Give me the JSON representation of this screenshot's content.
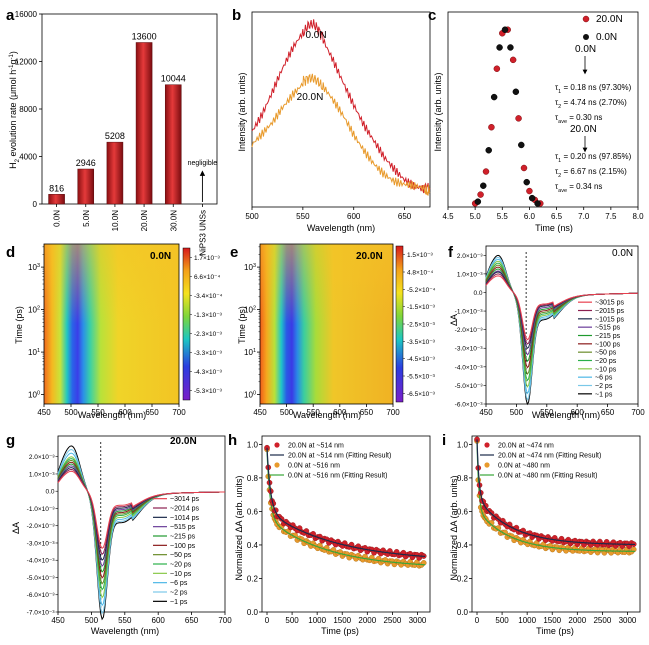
{
  "colors": {
    "red": "#d0202a",
    "orange": "#e89a2c",
    "dark": "#1b2a4a",
    "green": "#3aa63a",
    "black": "#000000"
  },
  "chart_data": [
    {
      "id": "a",
      "panel_label": "a",
      "type": "bar",
      "categories": [
        "0.0N",
        "5.0N",
        "10.0N",
        "20.0N",
        "30.0N",
        "NiPS3 UNSs"
      ],
      "values": [
        816,
        2946,
        5208,
        13600,
        10044,
        0
      ],
      "data_labels": [
        "816",
        "2946",
        "5208",
        "13600",
        "10044",
        ""
      ],
      "annotation": "negligible",
      "ylabel_parts": [
        "H",
        "2",
        "evolution rate (μmol h",
        "-1",
        "g",
        "-1",
        ")"
      ],
      "ylim": [
        0,
        16000
      ],
      "yticks": [
        "0",
        "4000",
        "8000",
        "12000",
        "16000"
      ],
      "ytick_values": [
        0,
        4000,
        8000,
        12000,
        16000
      ]
    },
    {
      "id": "b",
      "panel_label": "b",
      "type": "line",
      "xlabel": "Wavelength (nm)",
      "ylabel": "Intensity (arb. units)",
      "xlim": [
        500,
        675
      ],
      "ylim": [
        0,
        1.15
      ],
      "xticks": [
        "500",
        "550",
        "600",
        "650"
      ],
      "xtick_values": [
        500,
        550,
        600,
        650
      ],
      "series": [
        {
          "name": "0.0N",
          "color_key": "red",
          "x": [
            500,
            510,
            520,
            530,
            540,
            550,
            555,
            560,
            565,
            570,
            580,
            590,
            600,
            610,
            620,
            630,
            640,
            650,
            660,
            670,
            675
          ],
          "y": [
            0.46,
            0.55,
            0.67,
            0.8,
            0.92,
            1.02,
            1.07,
            1.08,
            1.05,
            1.0,
            0.88,
            0.74,
            0.6,
            0.47,
            0.37,
            0.28,
            0.22,
            0.17,
            0.14,
            0.12,
            0.11
          ]
        },
        {
          "name": "20.0N",
          "color_key": "orange",
          "x": [
            500,
            510,
            520,
            530,
            540,
            550,
            555,
            560,
            565,
            570,
            580,
            590,
            600,
            610,
            620,
            630,
            640,
            650,
            660,
            670,
            675
          ],
          "y": [
            0.35,
            0.42,
            0.5,
            0.6,
            0.68,
            0.74,
            0.76,
            0.76,
            0.74,
            0.7,
            0.61,
            0.52,
            0.42,
            0.34,
            0.27,
            0.21,
            0.16,
            0.13,
            0.11,
            0.09,
            0.09
          ]
        }
      ]
    },
    {
      "id": "c",
      "panel_label": "c",
      "type": "scatter",
      "xlabel": "Time (ns)",
      "ylabel": "Intensity (arb. units)",
      "xlim": [
        4.5,
        8.0
      ],
      "ylim": [
        0,
        1.1
      ],
      "xticks": [
        "4.5",
        "5.0",
        "5.5",
        "6.0",
        "6.5",
        "7.0",
        "7.5",
        "8.0"
      ],
      "xtick_values": [
        4.5,
        5.0,
        5.5,
        6.0,
        6.5,
        7.0,
        7.5,
        8.0
      ],
      "series": [
        {
          "name": "20.0N",
          "color_key": "red",
          "x": [
            5.0,
            5.1,
            5.2,
            5.3,
            5.4,
            5.5,
            5.6,
            5.7,
            5.8,
            5.9,
            6.0,
            6.1,
            6.2
          ],
          "y": [
            0.02,
            0.07,
            0.2,
            0.45,
            0.78,
            0.98,
            1.0,
            0.83,
            0.5,
            0.22,
            0.09,
            0.04,
            0.02
          ]
        },
        {
          "name": "0.0N",
          "color_key": "black",
          "x": [
            5.05,
            5.15,
            5.25,
            5.35,
            5.45,
            5.55,
            5.65,
            5.75,
            5.85,
            5.95,
            6.05,
            6.15
          ],
          "y": [
            0.03,
            0.12,
            0.32,
            0.62,
            0.9,
            1.0,
            0.9,
            0.65,
            0.35,
            0.14,
            0.05,
            0.02
          ]
        }
      ],
      "annotations": [
        {
          "title": "0.0N",
          "tau1": "= 0.18 ns (97.30%)",
          "tau2": "= 4.74 ns (2.70%)",
          "tauave": "= 0.30 ns"
        },
        {
          "title": "20.0N",
          "tau1": "= 0.20 ns (97.85%)",
          "tau2": "= 6.67 ns (2.15%)",
          "tauave": "= 0.34 ns"
        }
      ]
    },
    {
      "id": "d",
      "panel_label": "d",
      "type": "heatmap",
      "title": "0.0N",
      "xlabel": "Wavelength (nm)",
      "ylabel": "Time (ps)",
      "xlim": [
        450,
        700
      ],
      "xticks": [
        "450",
        "500",
        "550",
        "600",
        "650",
        "700"
      ],
      "xtick_values": [
        450,
        500,
        550,
        600,
        650,
        700
      ],
      "ytick_values": [
        1,
        10,
        100,
        1000
      ],
      "colorbar_ticks": [
        "1.7×10⁻³",
        "6.6×10⁻⁴",
        "-3.4×10⁻⁴",
        "-1.3×10⁻³",
        "-2.3×10⁻³",
        "-3.3×10⁻³",
        "-4.3×10⁻³",
        "-5.3×10⁻³"
      ]
    },
    {
      "id": "e",
      "panel_label": "e",
      "type": "heatmap",
      "title": "20.0N",
      "xlabel": "Wavelength (nm)",
      "ylabel": "Time (ps)",
      "xlim": [
        450,
        700
      ],
      "xticks": [
        "450",
        "500",
        "550",
        "600",
        "650",
        "700"
      ],
      "xtick_values": [
        450,
        500,
        550,
        600,
        650,
        700
      ],
      "ytick_values": [
        1,
        10,
        100,
        1000
      ],
      "colorbar_ticks": [
        "1.5×10⁻³",
        "4.8×10⁻⁴",
        "-5.2×10⁻⁴",
        "-1.5×10⁻³",
        "-2.5×10⁻³",
        "-3.5×10⁻³",
        "-4.5×10⁻³",
        "-5.5×10⁻³",
        "-6.5×10⁻³"
      ]
    },
    {
      "id": "f",
      "panel_label": "f",
      "type": "line",
      "title": "0.0N",
      "xlabel": "Wavelength (nm)",
      "ylabel": "ΔA",
      "xlim": [
        450,
        700
      ],
      "ylim": [
        -0.006,
        0.0025
      ],
      "xticks": [
        "450",
        "500",
        "550",
        "600",
        "650",
        "700"
      ],
      "xtick_values": [
        450,
        500,
        550,
        600,
        650,
        700
      ],
      "ytick_values": [
        0.002,
        0.001,
        0,
        -0.001,
        -0.002,
        -0.003,
        -0.004,
        -0.005,
        -0.006
      ],
      "yticks": [
        "2.0×10⁻³",
        "1.0×10⁻³",
        "0.0",
        "-1.0×10⁻³",
        "-2.0×10⁻³",
        "-3.0×10⁻³",
        "-4.0×10⁻³",
        "-5.0×10⁻³",
        "-6.0×10⁻³"
      ],
      "dashed_x": 516,
      "legend": [
        "~3015 ps",
        "~2015 ps",
        "~1015 ps",
        "~515 ps",
        "~215 ps",
        "~100 ps",
        "~50 ps",
        "~20 ps",
        "~10 ps",
        "~6 ps",
        "~2 ps",
        "~1 ps"
      ],
      "legend_colors": [
        "#e8404e",
        "#8b2050",
        "#1b2a4a",
        "#6a3d9a",
        "#1f9a2e",
        "#8b1a1a",
        "#6a8c2a",
        "#2ab04a",
        "#88c848",
        "#4db8e6",
        "#7ac8e8",
        "#000000"
      ],
      "peak_pos": [
        0.00085,
        0.00095,
        0.00105,
        0.0011,
        0.0012,
        0.0013,
        0.0014,
        0.0015,
        0.0016,
        0.0017,
        0.0018,
        0.0019
      ],
      "min_neg": [
        -0.0022,
        -0.0024,
        -0.0026,
        -0.0029,
        -0.0032,
        -0.0035,
        -0.0038,
        -0.0041,
        -0.0044,
        -0.0047,
        -0.005,
        -0.0052
      ]
    },
    {
      "id": "g",
      "panel_label": "g",
      "type": "line",
      "title": "20.0N",
      "xlabel": "Wavelength (nm)",
      "ylabel": "ΔA",
      "xlim": [
        450,
        700
      ],
      "ylim": [
        -0.007,
        0.0032
      ],
      "xticks": [
        "450",
        "500",
        "550",
        "600",
        "650",
        "700"
      ],
      "xtick_values": [
        450,
        500,
        550,
        600,
        650,
        700
      ],
      "ytick_values": [
        0.002,
        0.001,
        0,
        -0.001,
        -0.002,
        -0.003,
        -0.004,
        -0.005,
        -0.006,
        -0.007
      ],
      "yticks": [
        "2.0×10⁻³",
        "1.0×10⁻³",
        "0.0",
        "-1.0×10⁻³",
        "-2.0×10⁻³",
        "-3.0×10⁻³",
        "-4.0×10⁻³",
        "-5.0×10⁻³",
        "-6.0×10⁻³",
        "-7.0×10⁻³"
      ],
      "dashed_x": 514,
      "legend": [
        "~3014 ps",
        "~2014 ps",
        "~1014 ps",
        "~515 ps",
        "~215 ps",
        "~100 ps",
        "~50 ps",
        "~20 ps",
        "~10 ps",
        "~6 ps",
        "~2 ps",
        "~1 ps"
      ],
      "legend_colors": [
        "#e8404e",
        "#8b2050",
        "#1b2a4a",
        "#6a3d9a",
        "#1f9a2e",
        "#8b1a1a",
        "#6a8c2a",
        "#2ab04a",
        "#88c848",
        "#4db8e6",
        "#7ac8e8",
        "#000000"
      ],
      "peak_pos": [
        0.0011,
        0.0012,
        0.0013,
        0.0014,
        0.0015,
        0.0016,
        0.0017,
        0.0018,
        0.0019,
        0.0021,
        0.0023,
        0.0025
      ],
      "min_neg": [
        -0.0029,
        -0.0032,
        -0.0035,
        -0.0038,
        -0.0041,
        -0.0044,
        -0.0047,
        -0.005,
        -0.0054,
        -0.0058,
        -0.0062,
        -0.0065
      ]
    },
    {
      "id": "h",
      "panel_label": "h",
      "type": "scatter",
      "xlabel": "Time (ps)",
      "ylabel": "Normalized ΔA (arb. units)",
      "xlim": [
        -100,
        3250
      ],
      "ylim": [
        0,
        1.05
      ],
      "xticks": [
        "0",
        "500",
        "1000",
        "1500",
        "2000",
        "2500",
        "3000"
      ],
      "xtick_values": [
        0,
        500,
        1000,
        1500,
        2000,
        2500,
        3000
      ],
      "yticks": [
        "0.0",
        "0.2",
        "0.4",
        "0.6",
        "0.8",
        "1.0"
      ],
      "ytick_values": [
        0,
        0.2,
        0.4,
        0.6,
        0.8,
        1.0
      ],
      "legend": [
        "20.0N at ~514 nm",
        "20.0N at ~514 nm (Fitting Result)",
        "0.0N at ~516 nm",
        "0.0N at ~516 nm (Fitting Result)"
      ],
      "fits": [
        {
          "a": 0.38,
          "tau1": 70,
          "b": 0.3,
          "tau2": 1400,
          "c": 0.3
        },
        {
          "a": 0.4,
          "tau1": 60,
          "b": 0.3,
          "tau2": 1200,
          "c": 0.26
        }
      ]
    },
    {
      "id": "i",
      "panel_label": "i",
      "type": "scatter",
      "xlabel": "Time (ps)",
      "ylabel": "Normalized ΔA (arb. units)",
      "xlim": [
        -100,
        3250
      ],
      "ylim": [
        0,
        1.05
      ],
      "xticks": [
        "0",
        "500",
        "1000",
        "1500",
        "2000",
        "2500",
        "3000"
      ],
      "xtick_values": [
        0,
        500,
        1000,
        1500,
        2000,
        2500,
        3000
      ],
      "yticks": [
        "0.0",
        "0.2",
        "0.4",
        "0.6",
        "0.8",
        "1.0"
      ],
      "ytick_values": [
        0,
        0.2,
        0.4,
        0.6,
        0.8,
        1.0
      ],
      "legend": [
        "20.0N at ~474 nm",
        "20.0N at ~474 nm (Fitting Result)",
        "0.0N at ~480 nm",
        "0.0N at ~480 nm (Fitting Result)"
      ],
      "fits": [
        {
          "a": 0.35,
          "tau1": 40,
          "b": 0.28,
          "tau2": 700,
          "c": 0.4
        },
        {
          "a": 0.4,
          "tau1": 35,
          "b": 0.25,
          "tau2": 650,
          "c": 0.36
        }
      ]
    }
  ]
}
